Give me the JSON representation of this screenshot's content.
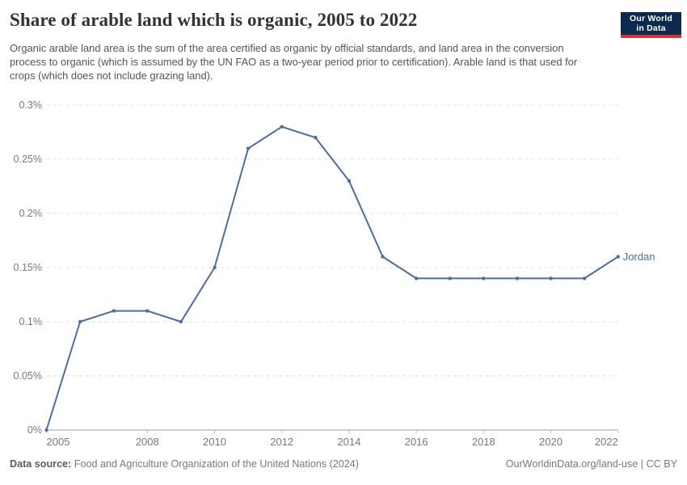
{
  "header": {
    "title": "Share of arable land which is organic, 2005 to 2022",
    "subtitle": "Organic arable land area is the sum of the area certified as organic by official standards, and land area in the conversion process to organic (which is assumed by the UN FAO as a two-year period prior to certification). Arable land is that used for crops (which does not include grazing land).",
    "logo": {
      "line1": "Our World",
      "line2": "in Data",
      "background_color": "#0b2a4e",
      "stripe_color": "#d8352c",
      "text_color": "#ffffff"
    }
  },
  "chart_data": {
    "type": "line",
    "title": "Share of arable land which is organic, 2005 to 2022",
    "x": [
      2005,
      2006,
      2007,
      2008,
      2009,
      2010,
      2011,
      2012,
      2013,
      2014,
      2015,
      2016,
      2017,
      2018,
      2019,
      2020,
      2021,
      2022
    ],
    "series": [
      {
        "name": "Jordan",
        "values": [
          0,
          0.1,
          0.11,
          0.11,
          0.1,
          0.15,
          0.26,
          0.28,
          0.27,
          0.23,
          0.16,
          0.14,
          0.14,
          0.14,
          0.14,
          0.14,
          0.14,
          0.16
        ],
        "color": "#4d6ca6"
      }
    ],
    "xlabel": "",
    "ylabel": "",
    "xlim": [
      2005,
      2022
    ],
    "ylim": [
      0,
      0.3
    ],
    "x_ticks": [
      2005,
      2008,
      2010,
      2012,
      2014,
      2016,
      2018,
      2020,
      2022
    ],
    "y_ticks": [
      0,
      0.05,
      0.1,
      0.15,
      0.2,
      0.25,
      0.3
    ],
    "y_tick_labels": [
      "0%",
      "0.05%",
      "0.1%",
      "0.15%",
      "0.2%",
      "0.25%",
      "0.3%"
    ],
    "grid": "horizontal-dashed",
    "legend_position": "end-of-line-label",
    "end_label": "Jordan"
  },
  "footer": {
    "source_label": "Data source:",
    "source_text": "Food and Agriculture Organization of the United Nations (2024)",
    "link_text": "OurWorldinData.org/land-use | CC BY"
  }
}
